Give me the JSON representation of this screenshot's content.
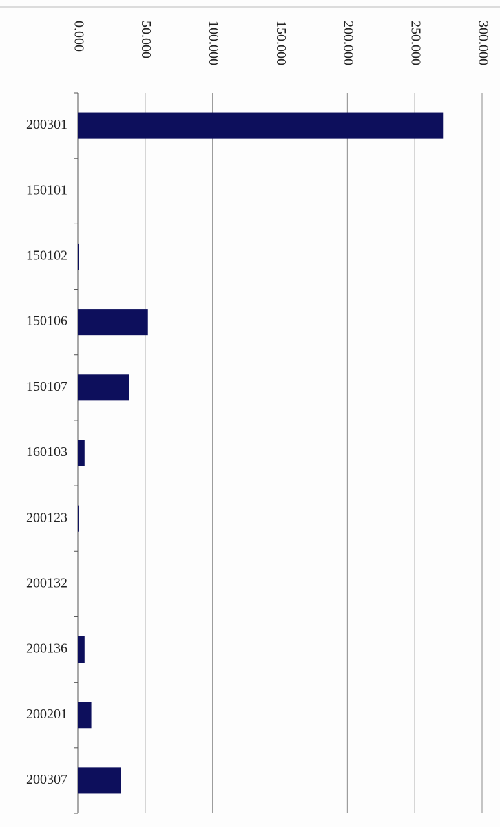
{
  "chart_data": {
    "type": "bar",
    "orientation": "horizontal",
    "categories": [
      "200301",
      "150101",
      "150102",
      "150106",
      "150107",
      "160103",
      "200123",
      "200132",
      "200136",
      "200201",
      "200307"
    ],
    "values": [
      271,
      0,
      1,
      52,
      38,
      5,
      0.5,
      0,
      5,
      10,
      32
    ],
    "color": "#0d0f5c",
    "xlim": [
      0,
      300
    ],
    "xticks": [
      {
        "value": 0,
        "label": "0.000"
      },
      {
        "value": 50,
        "label": "50.000"
      },
      {
        "value": 100,
        "label": "100.000"
      },
      {
        "value": 150,
        "label": "150.000"
      },
      {
        "value": 200,
        "label": "200.000"
      },
      {
        "value": 250,
        "label": "250.000"
      },
      {
        "value": 300,
        "label": "300.000"
      }
    ],
    "grid": true
  }
}
